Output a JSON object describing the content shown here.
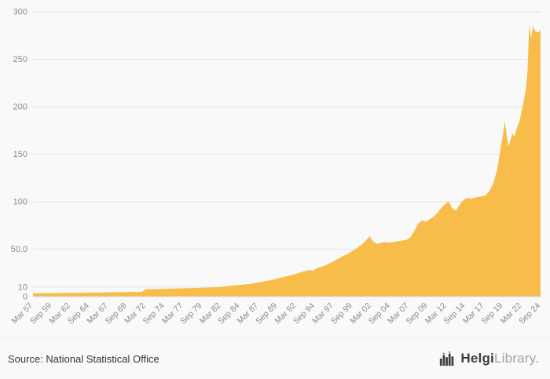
{
  "chart_data": {
    "type": "area",
    "title": "",
    "xlabel": "",
    "ylabel": "",
    "ylim": [
      0,
      300
    ],
    "grid": "horizontal",
    "legend": "none",
    "fill_color": "#F8BC4A",
    "grid_color": "#e4e4e4",
    "axis_text_color": "#8a8a8a",
    "yticks": [
      {
        "value": 0,
        "label": "0"
      },
      {
        "value": 10,
        "label": "10"
      },
      {
        "value": 50,
        "label": "50.0"
      },
      {
        "value": 100,
        "label": "100"
      },
      {
        "value": 150,
        "label": "150"
      },
      {
        "value": 200,
        "label": "200"
      },
      {
        "value": 250,
        "label": "250"
      },
      {
        "value": 300,
        "label": "300"
      }
    ],
    "xticks": [
      {
        "x": 1957.25,
        "label": "Mar 57"
      },
      {
        "x": 1959.75,
        "label": "Sep 59"
      },
      {
        "x": 1962.25,
        "label": "Mar 62"
      },
      {
        "x": 1964.75,
        "label": "Sep 64"
      },
      {
        "x": 1967.25,
        "label": "Mar 67"
      },
      {
        "x": 1969.75,
        "label": "Sep 69"
      },
      {
        "x": 1972.25,
        "label": "Mar 72"
      },
      {
        "x": 1974.75,
        "label": "Sep 74"
      },
      {
        "x": 1977.25,
        "label": "Mar 77"
      },
      {
        "x": 1979.75,
        "label": "Sep 79"
      },
      {
        "x": 1982.25,
        "label": "Mar 82"
      },
      {
        "x": 1984.75,
        "label": "Sep 84"
      },
      {
        "x": 1987.25,
        "label": "Mar 87"
      },
      {
        "x": 1989.75,
        "label": "Sep 89"
      },
      {
        "x": 1992.25,
        "label": "Mar 92"
      },
      {
        "x": 1994.75,
        "label": "Sep 94"
      },
      {
        "x": 1997.25,
        "label": "Mar 97"
      },
      {
        "x": 1999.75,
        "label": "Sep 99"
      },
      {
        "x": 2002.25,
        "label": "Mar 02"
      },
      {
        "x": 2004.75,
        "label": "Sep 04"
      },
      {
        "x": 2007.25,
        "label": "Mar 07"
      },
      {
        "x": 2009.75,
        "label": "Sep 09"
      },
      {
        "x": 2012.25,
        "label": "Mar 12"
      },
      {
        "x": 2014.75,
        "label": "Sep 14"
      },
      {
        "x": 2017.25,
        "label": "Mar 17"
      },
      {
        "x": 2019.75,
        "label": "Sep 19"
      },
      {
        "x": 2022.25,
        "label": "Mar 22"
      },
      {
        "x": 2024.75,
        "label": "Sep 24"
      }
    ],
    "series": [
      {
        "name": "value",
        "x": [
          1957.25,
          1959,
          1961,
          1963,
          1965,
          1967,
          1969,
          1971,
          1971.75,
          1972.25,
          1974,
          1976,
          1978,
          1980,
          1982,
          1983,
          1984,
          1985,
          1986,
          1987,
          1988,
          1989,
          1990,
          1991,
          1992,
          1993,
          1994,
          1994.5,
          1995,
          1996,
          1997,
          1997.5,
          1998,
          1998.5,
          1999,
          1999.5,
          2000,
          2000.5,
          2001,
          2001.5,
          2002,
          2002.5,
          2003,
          2003.5,
          2004,
          2004.5,
          2005,
          2005.5,
          2006,
          2006.5,
          2007,
          2007.5,
          2008,
          2008.5,
          2009,
          2009.5,
          2010,
          2010.5,
          2011,
          2011.5,
          2012,
          2012.5,
          2013,
          2013.5,
          2014,
          2014.5,
          2015,
          2015.5,
          2016,
          2016.5,
          2017,
          2017.5,
          2018,
          2018.5,
          2019,
          2019.5,
          2019.75,
          2020,
          2020.25,
          2020.5,
          2020.75,
          2021,
          2021.25,
          2021.5,
          2022,
          2022.25,
          2022.5,
          2022.75,
          2023,
          2023.25,
          2023.5,
          2023.75,
          2024,
          2024.5,
          2024.75
        ],
        "y": [
          3.5,
          3.6,
          3.8,
          4.0,
          4.2,
          4.5,
          4.7,
          4.9,
          5.0,
          7.8,
          8.1,
          8.5,
          8.9,
          9.4,
          10.2,
          11.0,
          11.8,
          12.5,
          13.3,
          14.5,
          16.0,
          17.5,
          19.5,
          21.5,
          23.5,
          26.0,
          28.0,
          27.2,
          30.0,
          32.5,
          36.0,
          38.5,
          40.5,
          43.0,
          44.5,
          47.0,
          49.5,
          52.0,
          55.0,
          59.0,
          63.5,
          58.0,
          55.5,
          56.5,
          57.5,
          56.8,
          57.2,
          58.0,
          58.6,
          59.2,
          60.0,
          63.0,
          70.0,
          77.0,
          80.5,
          79.0,
          81.5,
          84.0,
          88.0,
          93.0,
          97.0,
          100.5,
          93.0,
          90.5,
          97.0,
          102.0,
          104.0,
          103.0,
          104.5,
          105.0,
          105.5,
          107.0,
          112.0,
          120.0,
          135.0,
          160.0,
          170.0,
          185.0,
          170.0,
          158.0,
          165.0,
          172.0,
          168.0,
          175.0,
          186.0,
          196.0,
          206.0,
          216.0,
          236.0,
          287.0,
          272.0,
          285.0,
          280.0,
          278.0,
          281.0
        ]
      }
    ]
  },
  "footer": {
    "source_label": "Source: National Statistical Office",
    "logo": {
      "brand_primary": "Helgi",
      "brand_secondary": "Library",
      "suffix": "."
    }
  }
}
